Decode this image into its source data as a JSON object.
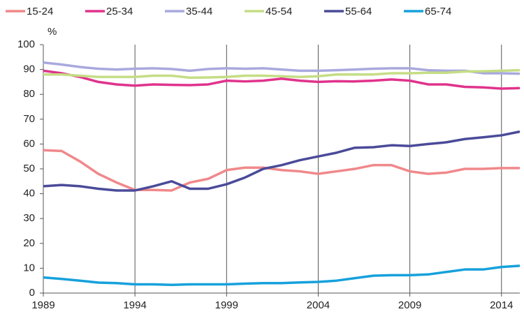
{
  "chart_data": {
    "type": "line",
    "y_label": "%",
    "x": [
      1989,
      1990,
      1991,
      1992,
      1993,
      1994,
      1995,
      1996,
      1997,
      1998,
      1999,
      2000,
      2001,
      2002,
      2003,
      2004,
      2005,
      2006,
      2007,
      2008,
      2009,
      2010,
      2011,
      2012,
      2013,
      2014,
      2015
    ],
    "series": [
      {
        "name": "15-24",
        "color": "#f0888a",
        "values": [
          57.5,
          57.2,
          53,
          48,
          44.5,
          41.5,
          41.5,
          41.3,
          44.5,
          46,
          49.5,
          50.5,
          50.5,
          49.5,
          49,
          48,
          49,
          50,
          51.5,
          51.5,
          49,
          48,
          48.5,
          50,
          50,
          50.3,
          50.3
        ]
      },
      {
        "name": "25-34",
        "color": "#e0338c",
        "values": [
          89.5,
          88.5,
          87,
          85,
          84,
          83.5,
          84,
          83.8,
          83.7,
          84,
          85.5,
          85.2,
          85.5,
          86.3,
          85.5,
          85,
          85.3,
          85.2,
          85.5,
          86,
          85.5,
          84,
          84,
          83,
          82.8,
          82.3,
          82.5
        ]
      },
      {
        "name": "35-44",
        "color": "#a9a9dd",
        "values": [
          92.8,
          92,
          91,
          90.3,
          90,
          90.3,
          90.5,
          90.2,
          89.5,
          90.2,
          90.5,
          90.3,
          90.5,
          90,
          89.5,
          89.5,
          89.7,
          90,
          90.3,
          90.5,
          90.5,
          89.7,
          89.5,
          89.5,
          88.5,
          88.5,
          88.3
        ]
      },
      {
        "name": "45-54",
        "color": "#c5dd85",
        "values": [
          88,
          88,
          87.5,
          87,
          87,
          87,
          87.5,
          87.5,
          86.7,
          86.8,
          87,
          87.5,
          87.5,
          87.3,
          87,
          87.3,
          88,
          88,
          88,
          88.5,
          88.5,
          88.7,
          88.7,
          89.2,
          89.3,
          89.5,
          89.7
        ]
      },
      {
        "name": "55-64",
        "color": "#4a4b99",
        "values": [
          43,
          43.5,
          43,
          42,
          41.3,
          41.3,
          43,
          45,
          42,
          42,
          43.8,
          46.5,
          50,
          51.5,
          53.5,
          55,
          56.5,
          58.5,
          58.7,
          59.5,
          59.2,
          60,
          60.7,
          62,
          62.7,
          63.5,
          65
        ]
      },
      {
        "name": "65-74",
        "color": "#16a1dc",
        "values": [
          6.3,
          5.7,
          5,
          4.2,
          4,
          3.5,
          3.5,
          3.3,
          3.5,
          3.5,
          3.5,
          3.8,
          4,
          4,
          4.3,
          4.5,
          5,
          6,
          7,
          7.2,
          7.2,
          7.5,
          8.5,
          9.5,
          9.5,
          10.5,
          11
        ]
      }
    ],
    "xlim": [
      1989,
      2015
    ],
    "xticks": [
      1989,
      1994,
      1999,
      2004,
      2009,
      2014
    ],
    "ylim": [
      0,
      100
    ],
    "yticks": [
      0,
      10,
      20,
      30,
      40,
      50,
      60,
      70,
      80,
      90,
      100
    ],
    "grid": true
  }
}
